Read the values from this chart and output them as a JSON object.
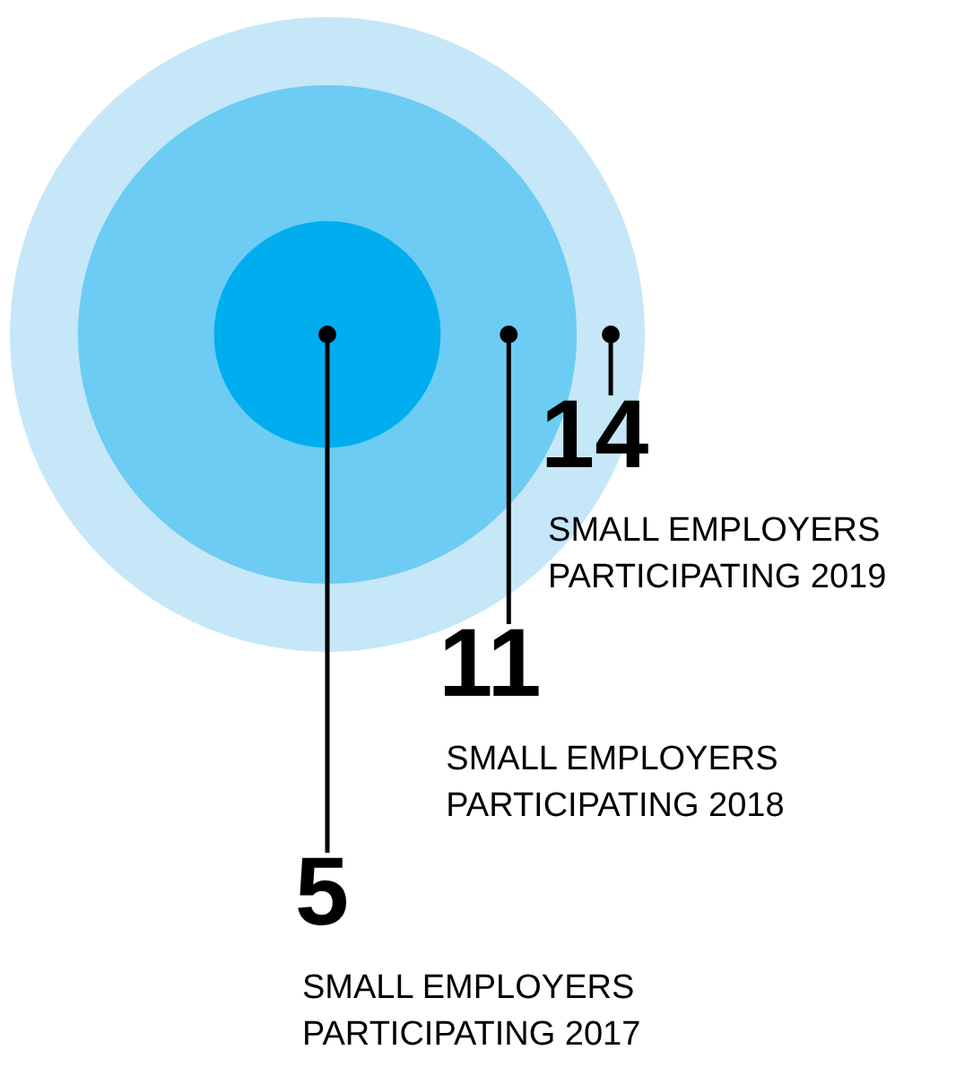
{
  "chart_data": {
    "type": "other",
    "categories": [
      "SMALL EMPLOYERS\nPARTICIPATING 2017",
      "SMALL EMPLOYERS\nPARTICIPATING 2018",
      "SMALL EMPLOYERS\nPARTICIPATING 2019"
    ],
    "values": [
      5,
      11,
      14
    ],
    "data_labels": true,
    "colors": [
      "#00aeef",
      "#6dccf3",
      "#c5e7f8"
    ]
  }
}
